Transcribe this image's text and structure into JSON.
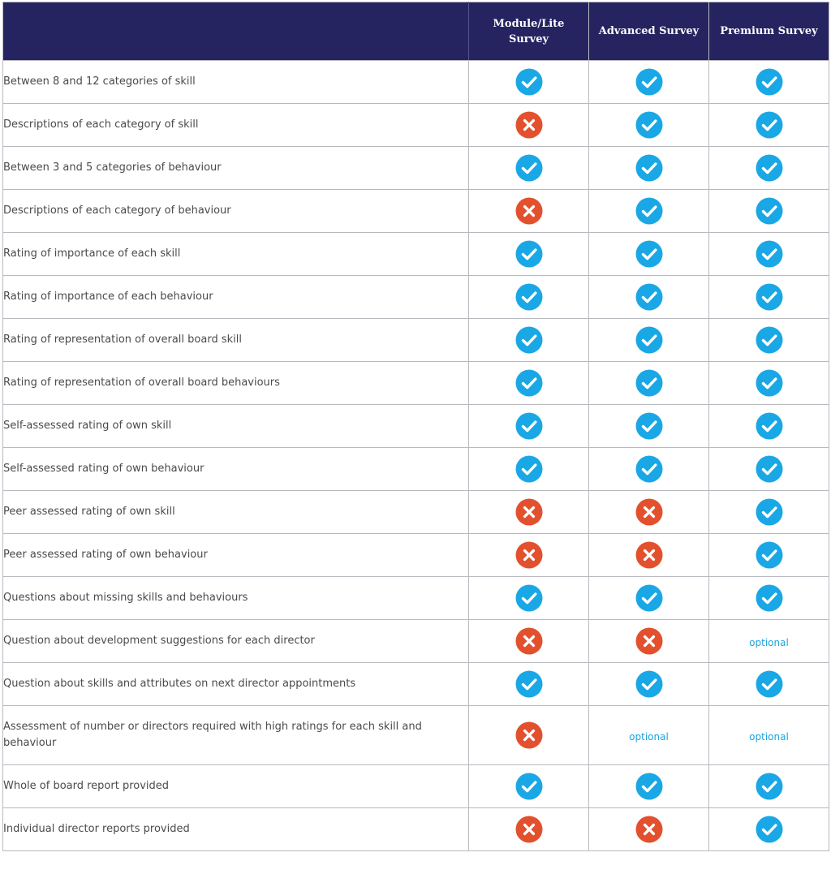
{
  "colors": {
    "header_bg": "#252460",
    "check": "#1aa7e6",
    "cross": "#e2502d",
    "optional": "#1ba4dc"
  },
  "icons": {
    "yes": "check-circle-icon",
    "no": "cross-circle-icon"
  },
  "header": {
    "plans": [
      "Module/Lite Survey",
      "Advanced Survey",
      "Premium Survey"
    ]
  },
  "rows": [
    {
      "feature": "Between 8 and 12 categories of skill",
      "values": [
        "yes",
        "yes",
        "yes"
      ]
    },
    {
      "feature": "Descriptions of each category of skill",
      "values": [
        "no",
        "yes",
        "yes"
      ]
    },
    {
      "feature": "Between 3 and 5 categories of behaviour",
      "values": [
        "yes",
        "yes",
        "yes"
      ]
    },
    {
      "feature": "Descriptions of each category of behaviour",
      "values": [
        "no",
        "yes",
        "yes"
      ]
    },
    {
      "feature": "Rating of importance of each skill",
      "values": [
        "yes",
        "yes",
        "yes"
      ]
    },
    {
      "feature": "Rating of importance of each behaviour",
      "values": [
        "yes",
        "yes",
        "yes"
      ]
    },
    {
      "feature": "Rating of representation of overall board skill",
      "values": [
        "yes",
        "yes",
        "yes"
      ]
    },
    {
      "feature": "Rating of representation of overall board behaviours",
      "values": [
        "yes",
        "yes",
        "yes"
      ]
    },
    {
      "feature": "Self-assessed rating of own skill",
      "values": [
        "yes",
        "yes",
        "yes"
      ]
    },
    {
      "feature": "Self-assessed rating of own behaviour",
      "values": [
        "yes",
        "yes",
        "yes"
      ]
    },
    {
      "feature": "Peer assessed rating of own skill",
      "values": [
        "no",
        "no",
        "yes"
      ]
    },
    {
      "feature": "Peer assessed rating of own behaviour",
      "values": [
        "no",
        "no",
        "yes"
      ]
    },
    {
      "feature": "Questions about missing skills and behaviours",
      "values": [
        "yes",
        "yes",
        "yes"
      ]
    },
    {
      "feature": "Question about development suggestions for each director",
      "values": [
        "no",
        "no",
        "optional"
      ]
    },
    {
      "feature": "Question about skills and attributes on next director appointments",
      "values": [
        "yes",
        "yes",
        "yes"
      ]
    },
    {
      "feature": "Assessment of number or directors required with high ratings for each skill and behaviour",
      "values": [
        "no",
        "optional",
        "optional"
      ]
    },
    {
      "feature": "Whole of board report provided",
      "values": [
        "yes",
        "yes",
        "yes"
      ]
    },
    {
      "feature": "Individual director reports provided",
      "values": [
        "no",
        "no",
        "yes"
      ]
    }
  ]
}
